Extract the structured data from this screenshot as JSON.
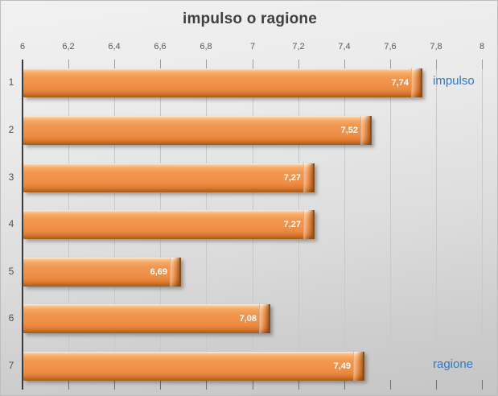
{
  "chart_data": {
    "type": "bar",
    "orientation": "horizontal",
    "title": "impulso o ragione",
    "categories": [
      "1",
      "2",
      "3",
      "4",
      "5",
      "6",
      "7"
    ],
    "values": [
      7.74,
      7.52,
      7.27,
      7.27,
      6.69,
      7.08,
      7.49
    ],
    "value_labels": [
      "7,74",
      "7,52",
      "7,27",
      "7,27",
      "6,69",
      "7,08",
      "7,49"
    ],
    "xlim": [
      6,
      8
    ],
    "x_ticks": [
      6,
      6.2,
      6.4,
      6.6,
      6.8,
      7,
      7.2,
      7.4,
      7.6,
      7.8,
      8
    ],
    "x_tick_labels": [
      "6",
      "6,2",
      "6,4",
      "6,6",
      "6,8",
      "7",
      "7,2",
      "7,4",
      "7,6",
      "7,8",
      "8"
    ],
    "grid": true,
    "value_axis_position": "top",
    "annotations": [
      {
        "text": "impulso",
        "row": 1
      },
      {
        "text": "ragione",
        "row": 7
      }
    ],
    "colors": {
      "bar_main": "#F0914A",
      "bar_highlight": "#FBC795",
      "bar_dark": "#A05A1D",
      "annotation_blue": "#2E7BC4",
      "axis_line": "#3C3C3C",
      "gridline": "#C8C8C8",
      "tick_top": "#9B9B9B",
      "tick_bottom": "#6E6E6E",
      "tick_text": "#595959",
      "category_text": "#49505C",
      "title_text": "#404040",
      "value_label_text": "#FFFFFF"
    }
  }
}
